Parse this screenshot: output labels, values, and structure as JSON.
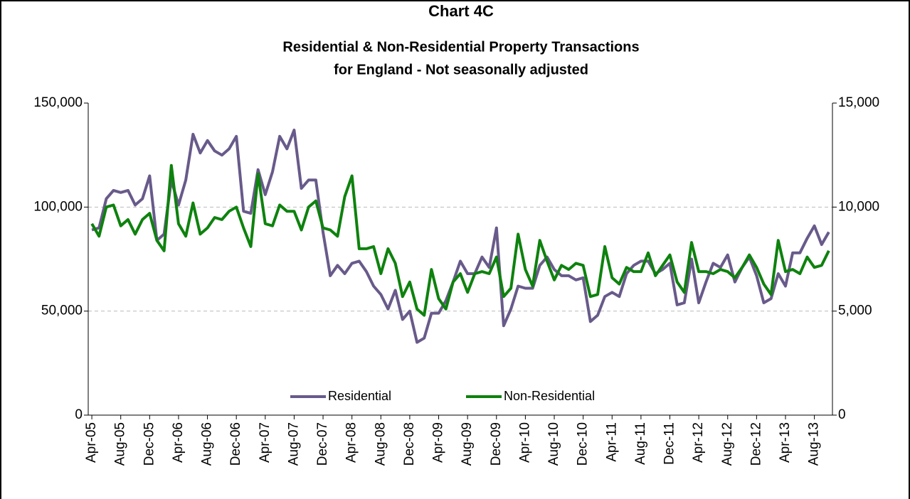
{
  "chart_data": {
    "type": "line",
    "title": "Chart 4C",
    "subtitle": [
      "Residential & Non-Residential Property Transactions",
      "for England - Not seasonally adjusted"
    ],
    "categories": [
      "Apr-05",
      null,
      null,
      null,
      "Aug-05",
      null,
      null,
      null,
      "Dec-05",
      null,
      null,
      null,
      "Apr-06",
      null,
      null,
      null,
      "Aug-06",
      null,
      null,
      null,
      "Dec-06",
      null,
      null,
      null,
      "Apr-07",
      null,
      null,
      null,
      "Aug-07",
      null,
      null,
      null,
      "Dec-07",
      null,
      null,
      null,
      "Apr-08",
      null,
      null,
      null,
      "Aug-08",
      null,
      null,
      null,
      "Dec-08",
      null,
      null,
      null,
      "Apr-09",
      null,
      null,
      null,
      "Aug-09",
      null,
      null,
      null,
      "Dec-09",
      null,
      null,
      null,
      "Apr-10",
      null,
      null,
      null,
      "Aug-10",
      null,
      null,
      null,
      "Dec-10",
      null,
      null,
      null,
      "Apr-11",
      null,
      null,
      null,
      "Aug-11",
      null,
      null,
      null,
      "Dec-11",
      null,
      null,
      null,
      "Apr-12",
      null,
      null,
      null,
      "Aug-12",
      null,
      null,
      null,
      "Dec-12",
      null,
      null,
      null,
      "Apr-13",
      null,
      null,
      null,
      "Aug-13",
      null,
      null
    ],
    "series": [
      {
        "name": "Residential",
        "color": "#685a8a",
        "values": [
          89000,
          90000,
          104000,
          108000,
          107000,
          108000,
          101000,
          104000,
          115000,
          84000,
          87000,
          113000,
          101000,
          113000,
          135000,
          126000,
          132000,
          127000,
          125000,
          128000,
          134000,
          98000,
          97000,
          118000,
          106000,
          117000,
          134000,
          128000,
          137000,
          109000,
          113000,
          113000,
          88000,
          67000,
          72000,
          68000,
          73000,
          74000,
          69000,
          62000,
          58000,
          51000,
          60000,
          46000,
          50000,
          35000,
          37000,
          49000,
          49000,
          55000,
          64000,
          74000,
          68000,
          68000,
          76000,
          71000,
          90000,
          43000,
          51000,
          62000,
          61000,
          61000,
          72000,
          76000,
          70000,
          67000,
          67000,
          65000,
          66000,
          45000,
          48000,
          57000,
          59000,
          57000,
          68000,
          72000,
          74000,
          74000,
          68000,
          70000,
          73000,
          53000,
          54000,
          75000,
          54000,
          64000,
          73000,
          71000,
          77000,
          64000,
          71000,
          76000,
          67000,
          54000,
          56000,
          68000,
          62000,
          78000,
          78000,
          85000,
          91000,
          82000,
          88000
        ]
      },
      {
        "name": "Non-Residential",
        "color": "#0e820e",
        "axis": "y2",
        "values": [
          9200,
          8600,
          10000,
          10100,
          9100,
          9400,
          8700,
          9400,
          9700,
          8400,
          7900,
          12000,
          9200,
          8600,
          10200,
          8700,
          9000,
          9500,
          9400,
          9800,
          10000,
          9000,
          8100,
          11600,
          9200,
          9100,
          10100,
          9800,
          9800,
          8900,
          10000,
          10300,
          9000,
          8900,
          8600,
          10500,
          11500,
          8000,
          8000,
          8100,
          6800,
          8000,
          7300,
          5700,
          6400,
          5100,
          4800,
          7000,
          5600,
          5100,
          6400,
          6800,
          5900,
          6800,
          6900,
          6800,
          7600,
          5700,
          6100,
          8700,
          7000,
          6200,
          8400,
          7400,
          6500,
          7200,
          7000,
          7300,
          7200,
          5700,
          5800,
          8100,
          6600,
          6300,
          7100,
          6900,
          6900,
          7800,
          6700,
          7200,
          7700,
          6400,
          5900,
          8300,
          6900,
          6900,
          6800,
          7000,
          6900,
          6600,
          7100,
          7700,
          7100,
          6300,
          5800,
          8400,
          6900,
          7000,
          6800,
          7600,
          7100,
          7200,
          7900
        ]
      }
    ],
    "ylim": [
      0,
      150000
    ],
    "yticks": [
      0,
      {
        "value": 50000,
        "label": "50,000"
      },
      {
        "value": 100000,
        "label": "100,000"
      },
      {
        "value": 150000,
        "label": "150,000"
      }
    ],
    "y2lim": [
      0,
      15000
    ],
    "y2ticks": [
      0,
      {
        "value": 5000,
        "label": "5,000"
      },
      {
        "value": 10000,
        "label": "10,000"
      },
      {
        "value": 15000,
        "label": "15,000"
      }
    ],
    "grid": true,
    "legend": "bottom"
  }
}
